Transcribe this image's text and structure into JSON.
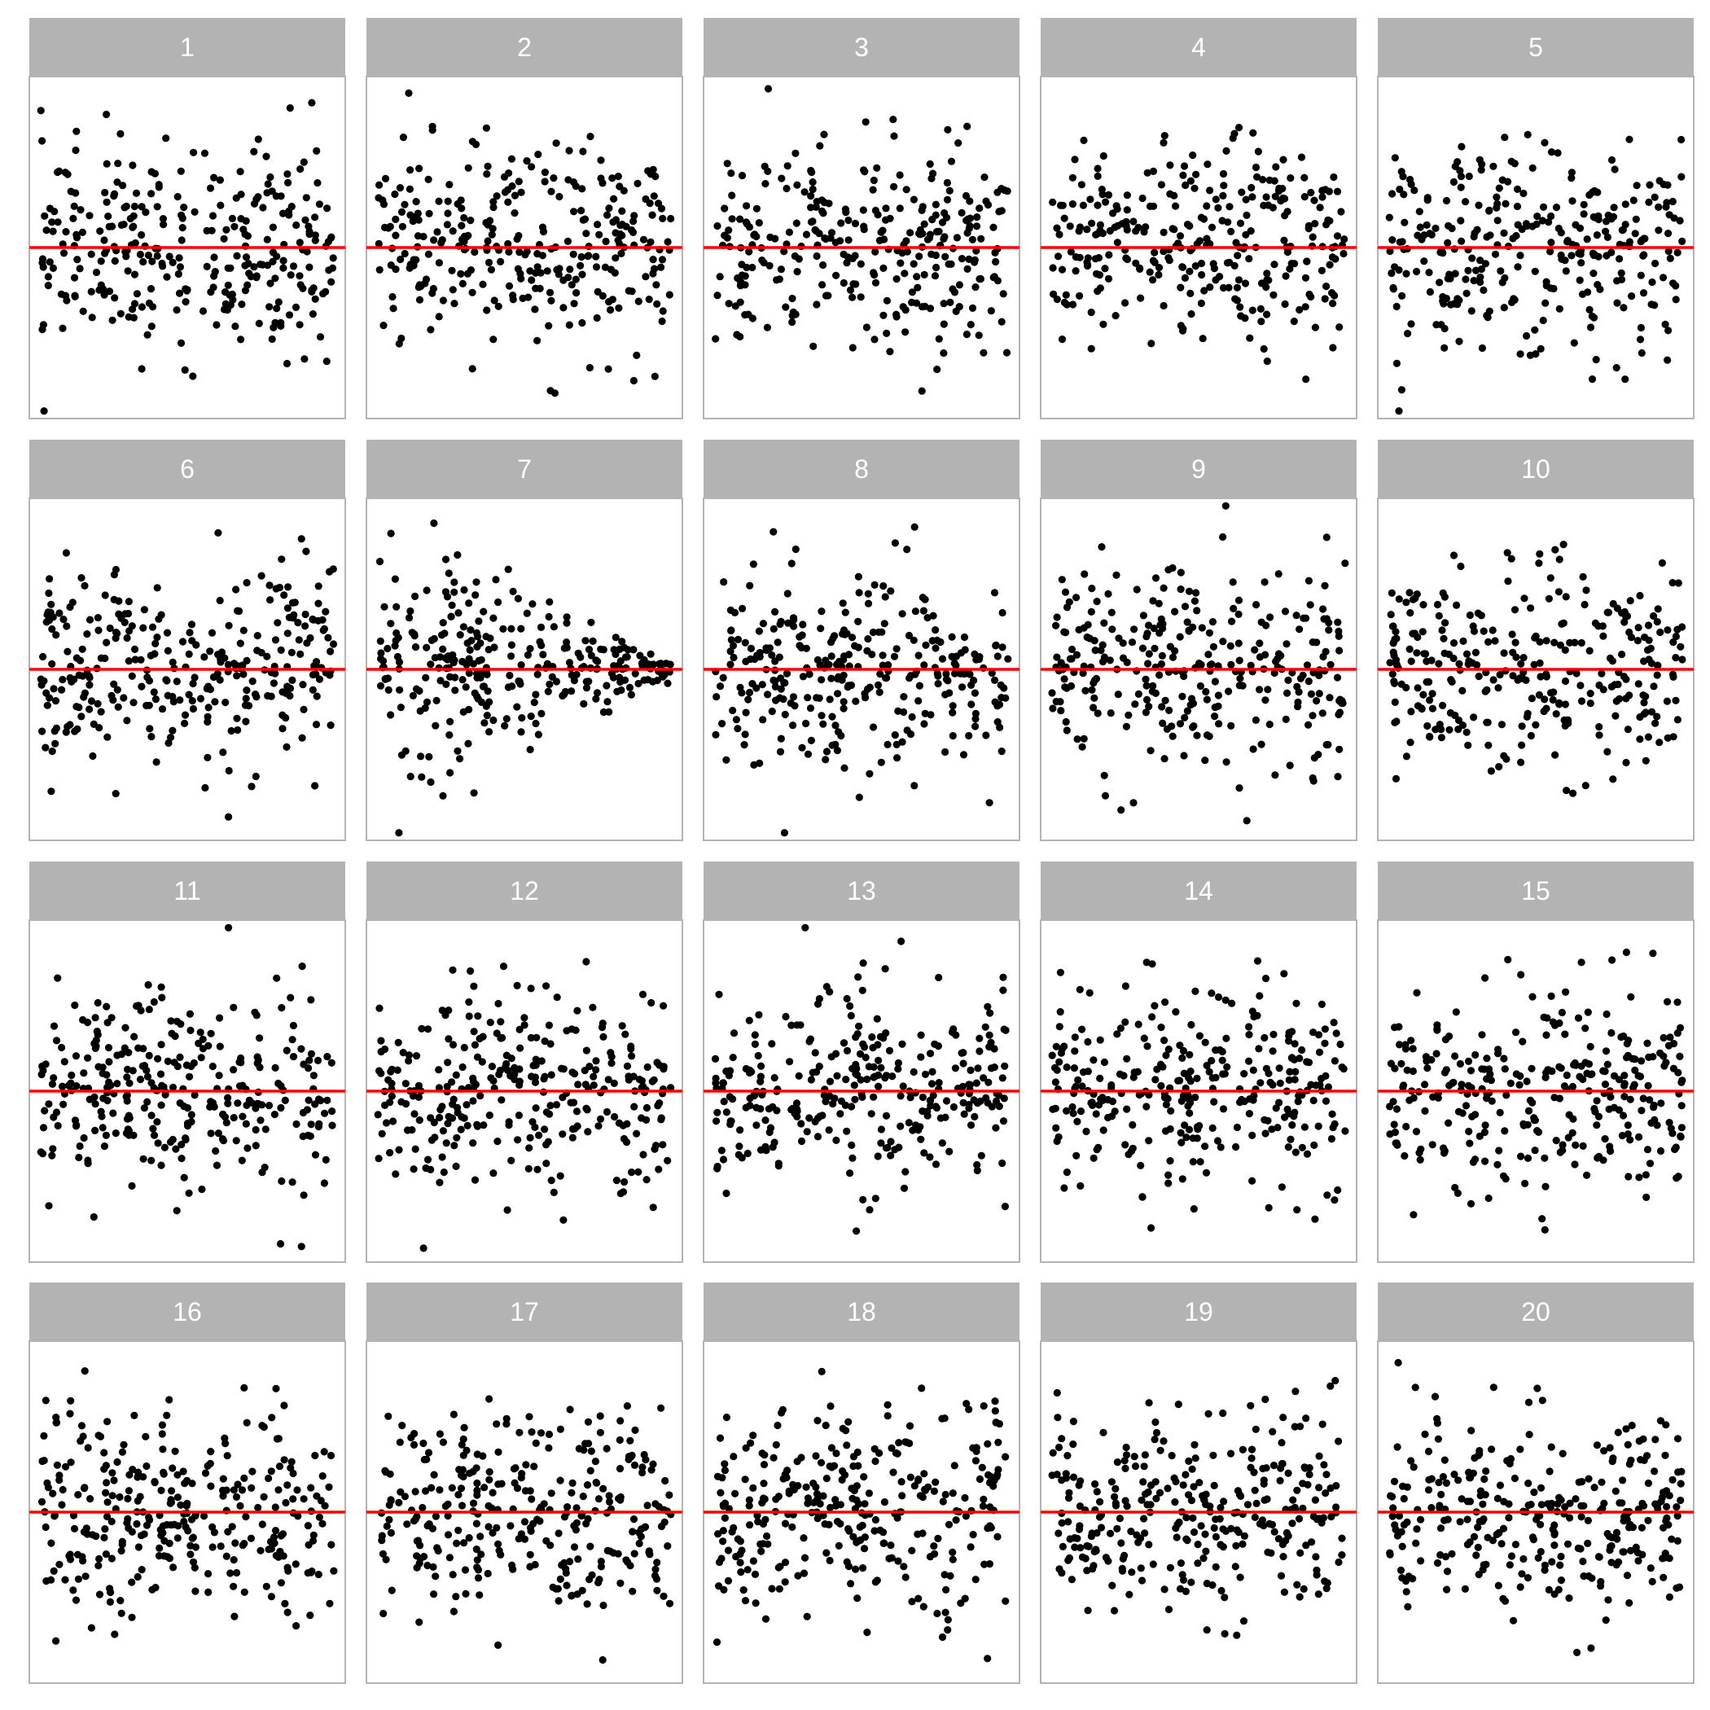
{
  "chart_data": {
    "type": "scatter",
    "title": "",
    "xlabel": "",
    "ylabel": "",
    "grid": false,
    "reference_line": {
      "y": 0,
      "color": "#ff0000"
    },
    "facet_labels": [
      "1",
      "2",
      "3",
      "4",
      "5",
      "6",
      "7",
      "8",
      "9",
      "10",
      "11",
      "12",
      "13",
      "14",
      "15",
      "16",
      "17",
      "18",
      "19",
      "20"
    ],
    "colors": {
      "point": "#000000",
      "reference_line": "#ff0000",
      "strip_fill": "#b3b3b3",
      "strip_text": "#ffffff",
      "panel_border": "#b3b3b3",
      "panel_background": "#ffffff"
    },
    "points_per_panel": 300,
    "xlim": [
      0,
      1
    ],
    "ylim": [
      -3.4,
      3.4
    ],
    "typical_spread_sd": 1,
    "facets": [
      {
        "label": "1",
        "pattern": "homoscedastic"
      },
      {
        "label": "2",
        "pattern": "homoscedastic"
      },
      {
        "label": "3",
        "pattern": "homoscedastic"
      },
      {
        "label": "4",
        "pattern": "homoscedastic"
      },
      {
        "label": "5",
        "pattern": "homoscedastic"
      },
      {
        "label": "6",
        "pattern": "homoscedastic"
      },
      {
        "label": "7",
        "pattern": "funnel: spread decreases as x increases"
      },
      {
        "label": "8",
        "pattern": "homoscedastic"
      },
      {
        "label": "9",
        "pattern": "homoscedastic"
      },
      {
        "label": "10",
        "pattern": "homoscedastic"
      },
      {
        "label": "11",
        "pattern": "homoscedastic"
      },
      {
        "label": "12",
        "pattern": "homoscedastic"
      },
      {
        "label": "13",
        "pattern": "homoscedastic"
      },
      {
        "label": "14",
        "pattern": "homoscedastic"
      },
      {
        "label": "15",
        "pattern": "homoscedastic"
      },
      {
        "label": "16",
        "pattern": "homoscedastic"
      },
      {
        "label": "17",
        "pattern": "homoscedastic"
      },
      {
        "label": "18",
        "pattern": "homoscedastic"
      },
      {
        "label": "19",
        "pattern": "homoscedastic"
      },
      {
        "label": "20",
        "pattern": "homoscedastic"
      }
    ]
  }
}
